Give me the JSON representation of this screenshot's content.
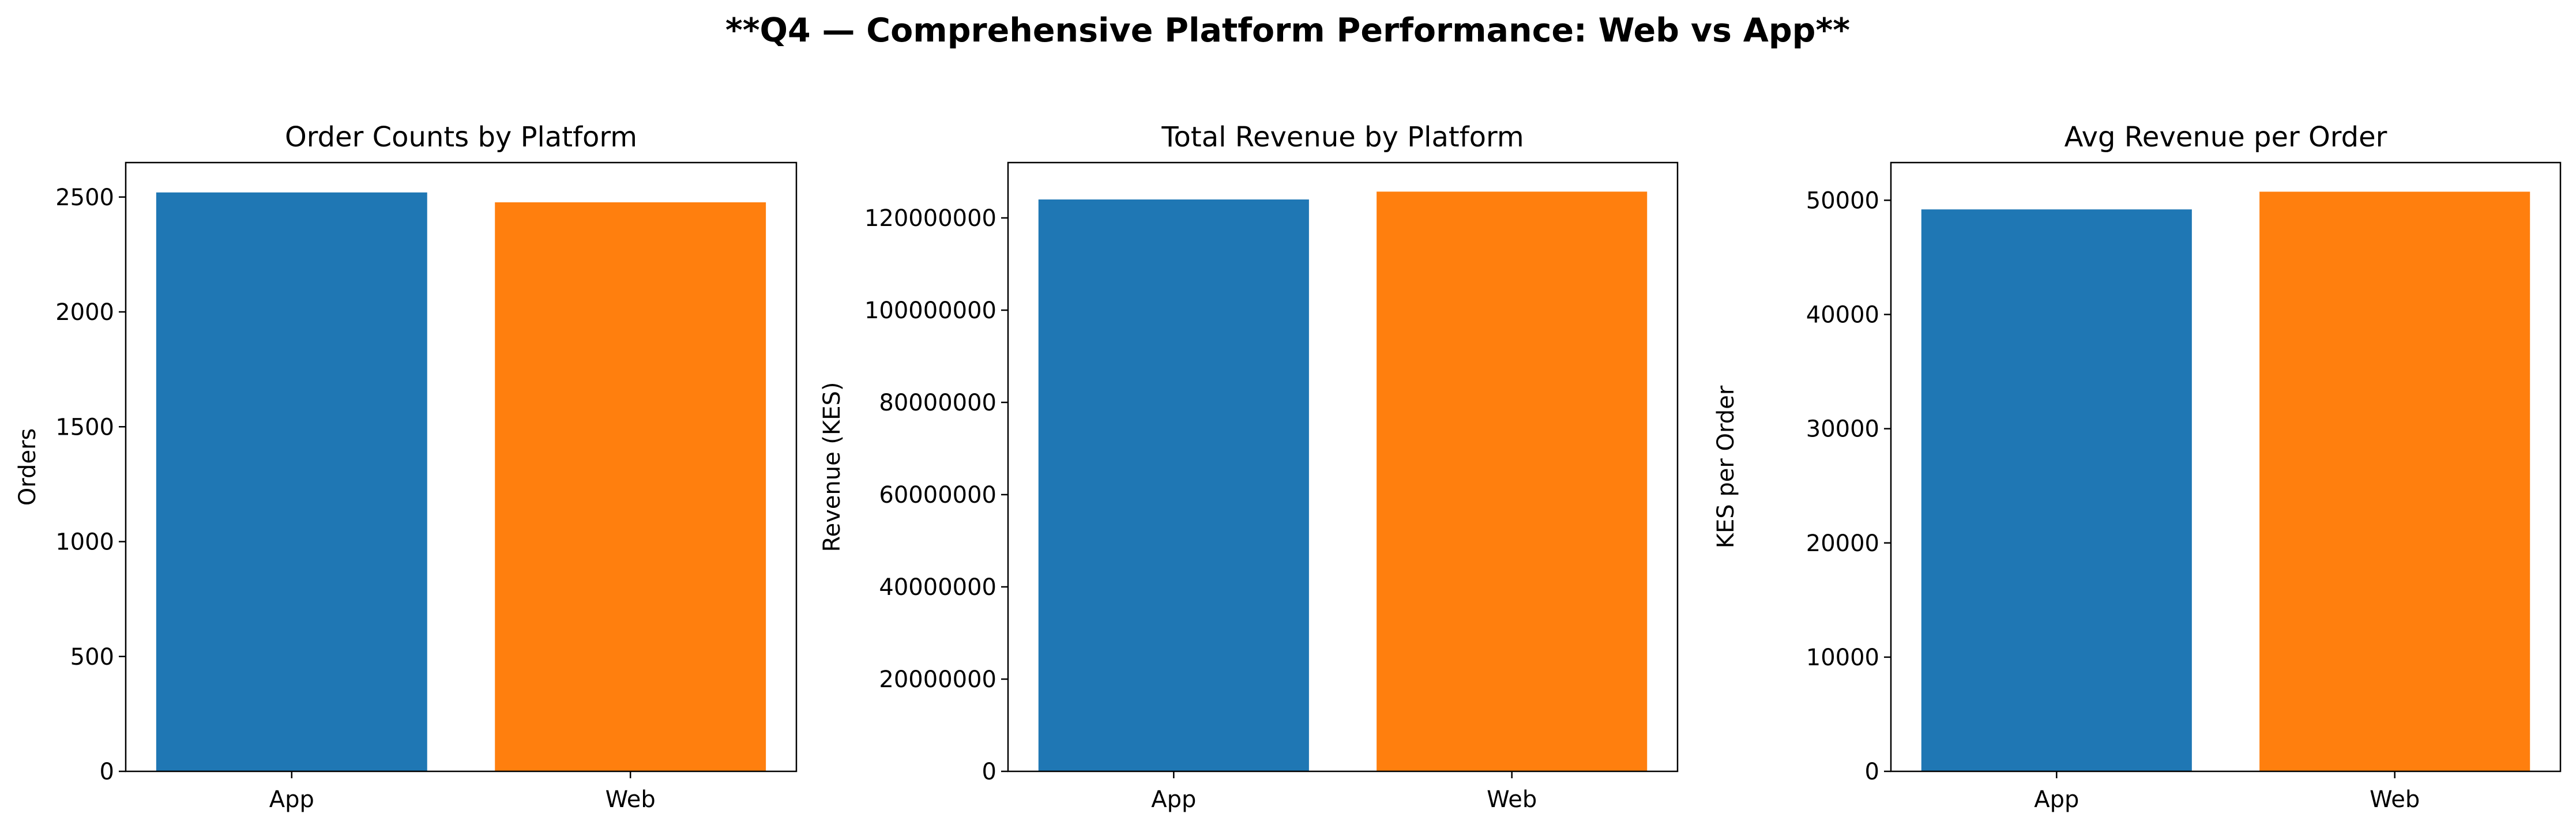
{
  "figure": {
    "suptitle": "**Q4 — Comprehensive Platform Performance: Web vs App**"
  },
  "colors": {
    "App": "#1f77b4",
    "Web": "#ff7f0e"
  },
  "chart_data": [
    {
      "type": "bar",
      "title": "Order Counts by Platform",
      "xlabel": "",
      "ylabel": "Orders",
      "categories": [
        "App",
        "Web"
      ],
      "values": [
        2520,
        2477
      ],
      "ylim": [
        0,
        2650
      ],
      "yticks": [
        0,
        500,
        1000,
        1500,
        2000,
        2500
      ],
      "ytick_labels": [
        "0",
        "500",
        "1000",
        "1500",
        "2000",
        "2500"
      ],
      "grid": false,
      "legend": "none"
    },
    {
      "type": "bar",
      "title": "Total Revenue by Platform",
      "xlabel": "",
      "ylabel": "Revenue (KES)",
      "categories": [
        "App",
        "Web"
      ],
      "values": [
        124000000,
        125700000
      ],
      "ylim": [
        0,
        132000000
      ],
      "yticks": [
        0,
        20000000,
        40000000,
        60000000,
        80000000,
        100000000,
        120000000
      ],
      "ytick_labels": [
        "0",
        "20000000",
        "40000000",
        "60000000",
        "80000000",
        "100000000",
        "120000000"
      ],
      "grid": false,
      "legend": "none"
    },
    {
      "type": "bar",
      "title": "Avg Revenue per Order",
      "xlabel": "",
      "ylabel": "KES per Order",
      "categories": [
        "App",
        "Web"
      ],
      "values": [
        49200,
        50750
      ],
      "ylim": [
        0,
        53300
      ],
      "yticks": [
        0,
        10000,
        20000,
        30000,
        40000,
        50000
      ],
      "ytick_labels": [
        "0",
        "10000",
        "20000",
        "30000",
        "40000",
        "50000"
      ],
      "grid": false,
      "legend": "none"
    }
  ]
}
